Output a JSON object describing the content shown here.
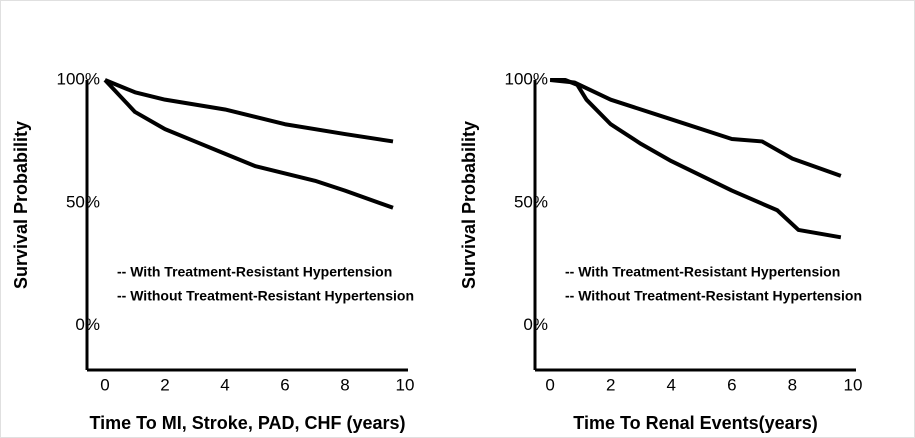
{
  "chart_data": [
    {
      "type": "line",
      "x_label": "Time To MI, Stroke, PAD, CHF (years)",
      "y_label": "Survival Probability",
      "xlim": [
        -0.6,
        10.1
      ],
      "ylim": [
        -18,
        100
      ],
      "xticks": [
        0,
        2,
        4,
        6,
        8,
        10
      ],
      "yticks": [
        {
          "value": 0,
          "label": "0%"
        },
        {
          "value": 50,
          "label": "50%"
        },
        {
          "value": 100,
          "label": "100%"
        }
      ],
      "series": [
        {
          "name": "-- With Treatment-Resistant Hypertension",
          "color": "#000000",
          "x": [
            0,
            1,
            2,
            3,
            4,
            5,
            6,
            7,
            8,
            9.6
          ],
          "values": [
            100,
            87,
            80,
            75,
            70,
            65,
            62,
            59,
            55,
            48
          ]
        },
        {
          "name": "-- Without Treatment-Resistant Hypertension",
          "color": "#000000",
          "x": [
            0,
            1,
            2,
            4,
            6,
            8,
            9.6
          ],
          "values": [
            100,
            95,
            92,
            88,
            82,
            78,
            75
          ]
        }
      ]
    },
    {
      "type": "line",
      "x_label": "Time To Renal Events(years)",
      "y_label": "Survival Probability",
      "xlim": [
        -0.5,
        10.1
      ],
      "ylim": [
        -18,
        100
      ],
      "xticks": [
        0,
        2,
        4,
        6,
        8,
        10
      ],
      "yticks": [
        {
          "value": 0,
          "label": "0%"
        },
        {
          "value": 50,
          "label": "50%"
        },
        {
          "value": 100,
          "label": "100%"
        }
      ],
      "series": [
        {
          "name": "-- With Treatment-Resistant Hypertension",
          "color": "#000000",
          "x": [
            0,
            0.5,
            0.9,
            1.2,
            2,
            3,
            4,
            5,
            6,
            7.5,
            8.2,
            9.6
          ],
          "values": [
            100,
            100,
            98,
            92,
            82,
            74,
            67,
            61,
            55,
            47,
            39,
            36
          ]
        },
        {
          "name": "-- Without Treatment-Resistant Hypertension",
          "color": "#000000",
          "x": [
            0,
            0.8,
            2,
            4,
            6,
            7,
            8,
            9.6
          ],
          "values": [
            100,
            99,
            92,
            84,
            76,
            75,
            68,
            61
          ]
        }
      ]
    }
  ]
}
